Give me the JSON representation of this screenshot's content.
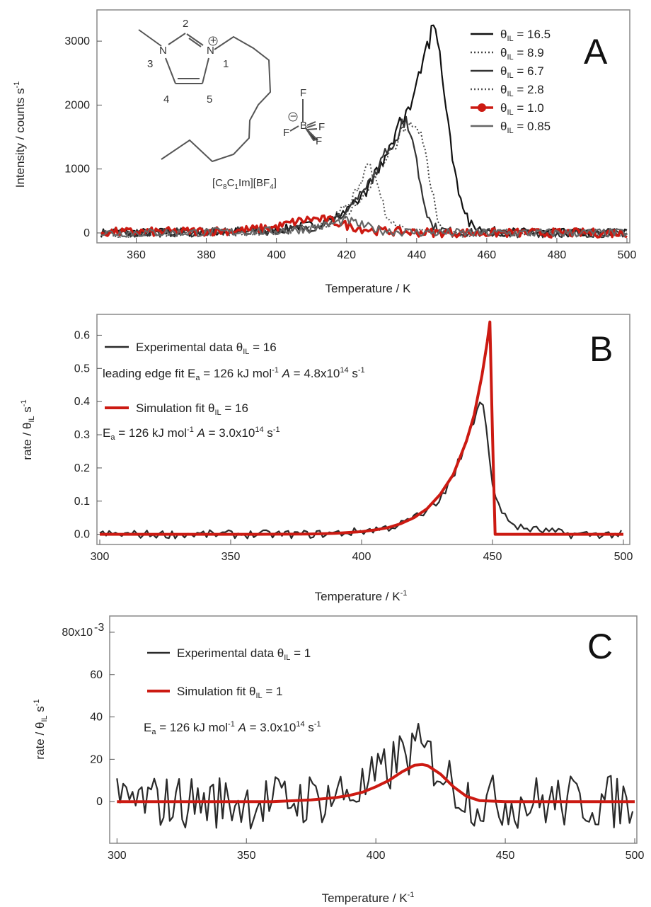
{
  "chart_data": [
    {
      "panel": "A",
      "type": "line",
      "xlabel": "Temperature / K",
      "ylabel": "Intensity / counts s",
      "ylabel_sup": "-1",
      "xlim": [
        350,
        500
      ],
      "ylim": [
        -100,
        3400
      ],
      "xticks": [
        360,
        380,
        400,
        420,
        440,
        460,
        480,
        500
      ],
      "yticks": [
        0,
        1000,
        2000,
        3000
      ],
      "legend_position": "top-right",
      "molecule": {
        "numbers": [
          "2",
          "3",
          "1",
          "4",
          "5"
        ],
        "charge_plus": "+",
        "charge_minus": "−",
        "boron": "B",
        "fluorine": [
          "F",
          "F",
          "F",
          "F"
        ],
        "nitrogen": [
          "N",
          "N"
        ],
        "label": "[C8C1Im][BF4]"
      },
      "series": [
        {
          "name": "θIL = 16.5",
          "style": "solid",
          "color": "#111111",
          "x": [
            350,
            370,
            390,
            400,
            405,
            410,
            415,
            420,
            425,
            430,
            435,
            438,
            440,
            442,
            444,
            446,
            448,
            450,
            452,
            455,
            460,
            470,
            480,
            500
          ],
          "y": [
            0,
            10,
            20,
            40,
            90,
            120,
            200,
            330,
            620,
            1050,
            1650,
            1950,
            2300,
            2850,
            3100,
            2950,
            2300,
            1300,
            600,
            150,
            30,
            10,
            0,
            0
          ]
        },
        {
          "name": "θIL = 8.9",
          "style": "dotted",
          "color": "#444444",
          "x": [
            350,
            380,
            400,
            410,
            415,
            420,
            425,
            430,
            435,
            438,
            440,
            442,
            444,
            446,
            448,
            450,
            455,
            470,
            500
          ],
          "y": [
            0,
            10,
            40,
            80,
            160,
            300,
            600,
            1000,
            1500,
            1700,
            1650,
            1400,
            800,
            200,
            50,
            20,
            0,
            0,
            0
          ]
        },
        {
          "name": "θIL = 6.7",
          "style": "solid",
          "color": "#333333",
          "x": [
            350,
            380,
            400,
            410,
            415,
            420,
            425,
            430,
            435,
            437,
            438,
            440,
            442,
            444,
            446,
            450,
            455,
            470,
            500
          ],
          "y": [
            0,
            10,
            40,
            80,
            160,
            320,
            650,
            1100,
            1600,
            1780,
            1700,
            1100,
            500,
            150,
            60,
            20,
            0,
            0,
            0
          ]
        },
        {
          "name": "θIL = 2.8",
          "style": "dotted",
          "color": "#555555",
          "x": [
            350,
            380,
            400,
            410,
            415,
            420,
            424,
            426,
            428,
            430,
            432,
            435,
            440,
            450,
            470,
            500
          ],
          "y": [
            0,
            10,
            30,
            80,
            170,
            420,
            800,
            1100,
            900,
            500,
            220,
            60,
            10,
            0,
            0,
            0
          ]
        },
        {
          "name": "θIL = 1.0",
          "style": "marker",
          "color": "#cc1a12",
          "x": [
            350,
            370,
            390,
            400,
            405,
            410,
            415,
            420,
            425,
            430,
            440,
            460,
            480,
            500
          ],
          "y": [
            10,
            20,
            40,
            90,
            170,
            220,
            200,
            120,
            60,
            30,
            10,
            0,
            0,
            0
          ]
        },
        {
          "name": "θIL = 0.85",
          "style": "solid",
          "color": "#666666",
          "x": [
            350,
            380,
            400,
            410,
            415,
            420,
            425,
            430,
            435,
            440,
            450,
            470,
            500
          ],
          "y": [
            0,
            10,
            30,
            70,
            130,
            200,
            110,
            40,
            20,
            10,
            0,
            0,
            0
          ]
        }
      ]
    },
    {
      "panel": "B",
      "type": "line",
      "xlabel": "Temperature / K",
      "xlabel_sup": "-1",
      "ylabel": "rate /  θIL s",
      "ylabel_sup": "-1",
      "xlim": [
        300,
        500
      ],
      "ylim": [
        -0.02,
        0.65
      ],
      "xticks": [
        300,
        350,
        400,
        450,
        500
      ],
      "yticks": [
        0.0,
        0.1,
        0.2,
        0.3,
        0.4,
        0.5,
        0.6
      ],
      "annotations": {
        "exp_label": "Experimental data  θIL = 16",
        "leading_edge": "leading edge fit Ea = 126 kJ mol-1  A = 4.8x10^14 s-1",
        "sim_label": "Simulation fit  θIL = 16",
        "sim_params": "Ea = 126 kJ mol-1  A = 3.0x10^14 s-1"
      },
      "series": [
        {
          "name": "Experimental data  θIL = 16",
          "color": "#2a2a2a",
          "x": [
            300,
            320,
            340,
            360,
            380,
            395,
            400,
            405,
            410,
            415,
            420,
            425,
            430,
            435,
            440,
            442,
            444,
            446,
            448,
            450,
            452,
            455,
            460,
            470,
            480,
            500
          ],
          "y": [
            0,
            0,
            0,
            0,
            0,
            0.005,
            0.01,
            0.015,
            0.02,
            0.03,
            0.05,
            0.07,
            0.11,
            0.17,
            0.28,
            0.33,
            0.39,
            0.41,
            0.3,
            0.15,
            0.09,
            0.05,
            0.02,
            0.01,
            0,
            0
          ]
        },
        {
          "name": "Simulation fit  θIL = 16",
          "color": "#cc1a12",
          "x": [
            300,
            360,
            380,
            390,
            400,
            405,
            410,
            415,
            420,
            425,
            430,
            435,
            440,
            443,
            446,
            448,
            449,
            450,
            451,
            470,
            500
          ],
          "y": [
            0,
            0,
            0.001,
            0.003,
            0.008,
            0.013,
            0.02,
            0.032,
            0.05,
            0.077,
            0.12,
            0.18,
            0.28,
            0.36,
            0.48,
            0.58,
            0.64,
            0.3,
            0,
            0,
            0
          ]
        }
      ]
    },
    {
      "panel": "C",
      "type": "line",
      "xlabel": "Temperature / K",
      "xlabel_sup": "-1",
      "ylabel": "rate /  θIL s",
      "ylabel_sup": "-1",
      "xlim": [
        298,
        500
      ],
      "ylim": [
        -0.018,
        0.085
      ],
      "xticks": [
        300,
        350,
        400,
        450,
        500
      ],
      "yticks": [
        0,
        0.02,
        0.04,
        0.06,
        0.08
      ],
      "ytick_labels": [
        "0",
        "20",
        "40",
        "60",
        "80x10"
      ],
      "ytick_top_sup": "-3",
      "annotations": {
        "exp_label": "Experimental data   θIL = 1",
        "sim_label": "Simulation fit   θIL = 1",
        "sim_params": "Ea = 126 kJ mol-1  A = 3.0x10^14 s-1"
      },
      "series": [
        {
          "name": "Experimental data   θIL = 1",
          "color": "#2a2a2a",
          "x": [
            300,
            320,
            340,
            360,
            380,
            395,
            400,
            405,
            410,
            415,
            420,
            425,
            430,
            435,
            440,
            460,
            480,
            500
          ],
          "y": [
            0,
            0,
            0,
            0,
            0.002,
            0.006,
            0.01,
            0.016,
            0.022,
            0.025,
            0.022,
            0.015,
            0.008,
            0.003,
            0,
            0,
            0,
            0
          ]
        },
        {
          "name": "Simulation fit   θIL = 1",
          "color": "#cc1a12",
          "x": [
            300,
            360,
            375,
            385,
            390,
            395,
            400,
            405,
            410,
            415,
            418,
            420,
            425,
            430,
            435,
            440,
            450,
            500
          ],
          "y": [
            0,
            0,
            0.0008,
            0.002,
            0.003,
            0.0045,
            0.007,
            0.01,
            0.014,
            0.0172,
            0.0175,
            0.017,
            0.013,
            0.007,
            0.0025,
            0.0005,
            0,
            0
          ]
        }
      ]
    }
  ]
}
